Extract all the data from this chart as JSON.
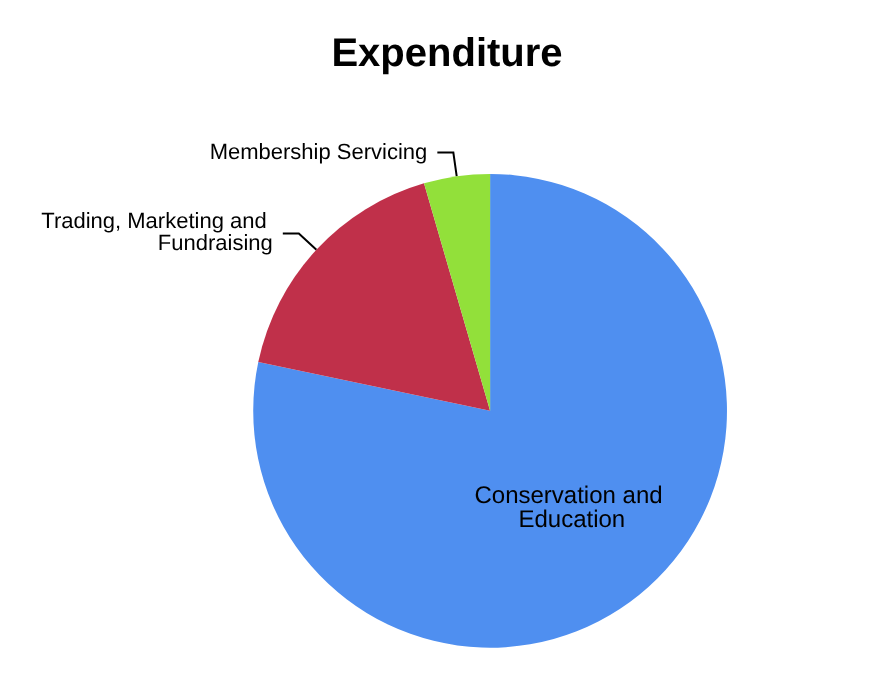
{
  "chart_data": {
    "type": "pie",
    "title": "Expenditure",
    "categories": [
      "Conservation and Education",
      "Trading, Marketing and Fundraising",
      "Membership Servicing"
    ],
    "values": [
      78.3,
      17.2,
      4.5
    ],
    "colors": [
      "#4f8ff0",
      "#c0304a",
      "#92e03a"
    ],
    "legend": false
  }
}
